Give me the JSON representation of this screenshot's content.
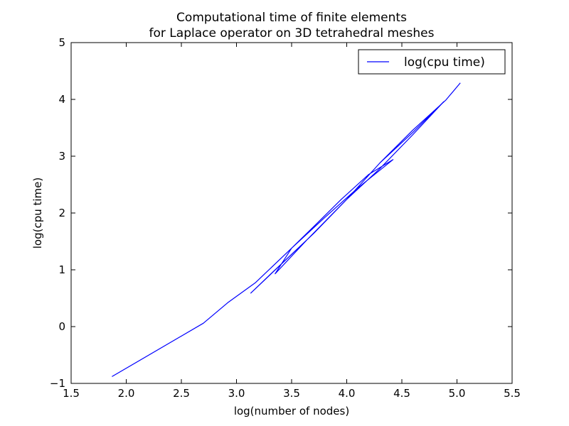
{
  "chart_data": {
    "type": "line",
    "title": "Computational time of finite elements\nfor Laplace operator on 3D tetrahedral meshes",
    "title_lines": [
      "Computational time of finite elements",
      "for Laplace operator on 3D tetrahedral meshes"
    ],
    "xlabel": "log(number of nodes)",
    "ylabel": "log(cpu time)",
    "xlim": [
      1.5,
      5.5
    ],
    "ylim": [
      -1,
      5
    ],
    "xticks": [
      1.5,
      2.0,
      2.5,
      3.0,
      3.5,
      4.0,
      4.5,
      5.0,
      5.5
    ],
    "xtick_labels": [
      "1.5",
      "2.0",
      "2.5",
      "3.0",
      "3.5",
      "4.0",
      "4.5",
      "5.0",
      "5.5"
    ],
    "yticks": [
      -1,
      0,
      1,
      2,
      3,
      4,
      5
    ],
    "ytick_labels": [
      "−1",
      "0",
      "1",
      "2",
      "3",
      "4",
      "5"
    ],
    "grid": false,
    "legend_position": "top-right",
    "series": [
      {
        "name": "log(cpu time)",
        "color": "#0000ff",
        "x": [
          1.87,
          2.7,
          2.92,
          3.17,
          3.5,
          3.8,
          4.1,
          4.42,
          4.2,
          3.95,
          3.7,
          3.5,
          3.35,
          3.65,
          4.0,
          4.3,
          4.6,
          4.88,
          4.6,
          4.3,
          4.0,
          3.7,
          3.45,
          3.13,
          3.35,
          3.7,
          4.0,
          4.3,
          4.6,
          4.9,
          5.03
        ],
        "y": [
          -0.88,
          0.06,
          0.42,
          0.77,
          1.38,
          1.92,
          2.44,
          2.94,
          2.68,
          2.24,
          1.76,
          1.38,
          0.93,
          1.55,
          2.24,
          2.88,
          3.42,
          3.96,
          3.38,
          2.78,
          2.24,
          1.64,
          1.18,
          0.59,
          1.0,
          1.64,
          2.24,
          2.88,
          3.46,
          3.99,
          4.29
        ]
      }
    ]
  }
}
